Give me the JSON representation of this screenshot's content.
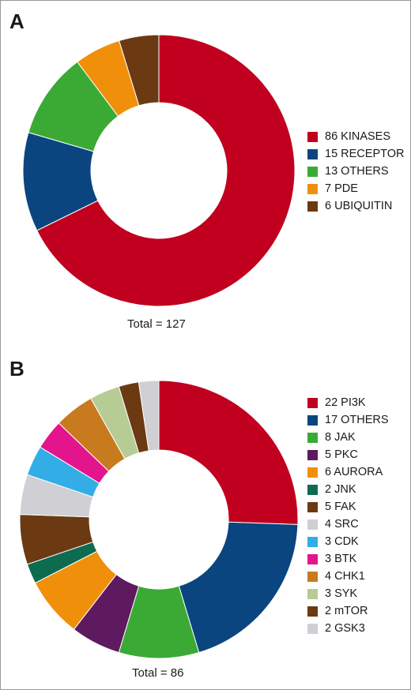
{
  "chart_data": [
    {
      "panel": "A",
      "type": "pie",
      "total_label": "Total = 127",
      "slices": [
        {
          "label": "86 KINASES",
          "value": 86,
          "color": "#c0001e"
        },
        {
          "label": "15 RECEPTOR",
          "value": 15,
          "color": "#0a4580"
        },
        {
          "label": "13 OTHERS",
          "value": 13,
          "color": "#3aaa35"
        },
        {
          "label": "7 PDE",
          "value": 7,
          "color": "#f0900a"
        },
        {
          "label": "6 UBIQUITIN",
          "value": 6,
          "color": "#6b3a12"
        }
      ]
    },
    {
      "panel": "B",
      "type": "pie",
      "total_label": "Total = 86",
      "slices": [
        {
          "label": "22 PI3K",
          "value": 22,
          "color": "#c0001e"
        },
        {
          "label": "17 OTHERS",
          "value": 17,
          "color": "#0a4580"
        },
        {
          "label": "8 JAK",
          "value": 8,
          "color": "#3aaa35"
        },
        {
          "label": "5 PKC",
          "value": 5,
          "color": "#5e1a5e"
        },
        {
          "label": "6 AURORA",
          "value": 6,
          "color": "#f0900a"
        },
        {
          "label": "2 JNK",
          "value": 2,
          "color": "#0d6b50"
        },
        {
          "label": "5 FAK",
          "value": 5,
          "color": "#6b3a12"
        },
        {
          "label": "4 SRC",
          "value": 4,
          "color": "#cfcfd4"
        },
        {
          "label": "3 CDK",
          "value": 3,
          "color": "#32ade6"
        },
        {
          "label": "3 BTK",
          "value": 3,
          "color": "#e4148c"
        },
        {
          "label": "4 CHK1",
          "value": 4,
          "color": "#c87a1e"
        },
        {
          "label": "3 SYK",
          "value": 3,
          "color": "#b6cc94"
        },
        {
          "label": "2 mTOR",
          "value": 2,
          "color": "#6b3a12"
        },
        {
          "label": "2 GSK3",
          "value": 2,
          "color": "#cfcfd4"
        }
      ]
    }
  ]
}
